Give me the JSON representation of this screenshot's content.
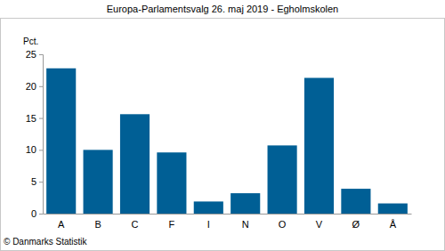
{
  "chart_data": {
    "type": "bar",
    "title": "Europa-Parlamentsvalg 26. maj 2019 - Egholmskolen",
    "y_label": "Pct.",
    "source": "© Danmarks Statistik",
    "categories": [
      "A",
      "B",
      "C",
      "F",
      "I",
      "N",
      "O",
      "V",
      "Ø",
      "Å"
    ],
    "values": [
      22.8,
      10.0,
      15.6,
      9.6,
      1.9,
      3.2,
      10.7,
      21.3,
      3.9,
      1.6
    ],
    "color": "#005f95",
    "ylim": [
      0,
      25
    ],
    "yticks": [
      0,
      5,
      10,
      15,
      20,
      25
    ],
    "grid": false
  }
}
